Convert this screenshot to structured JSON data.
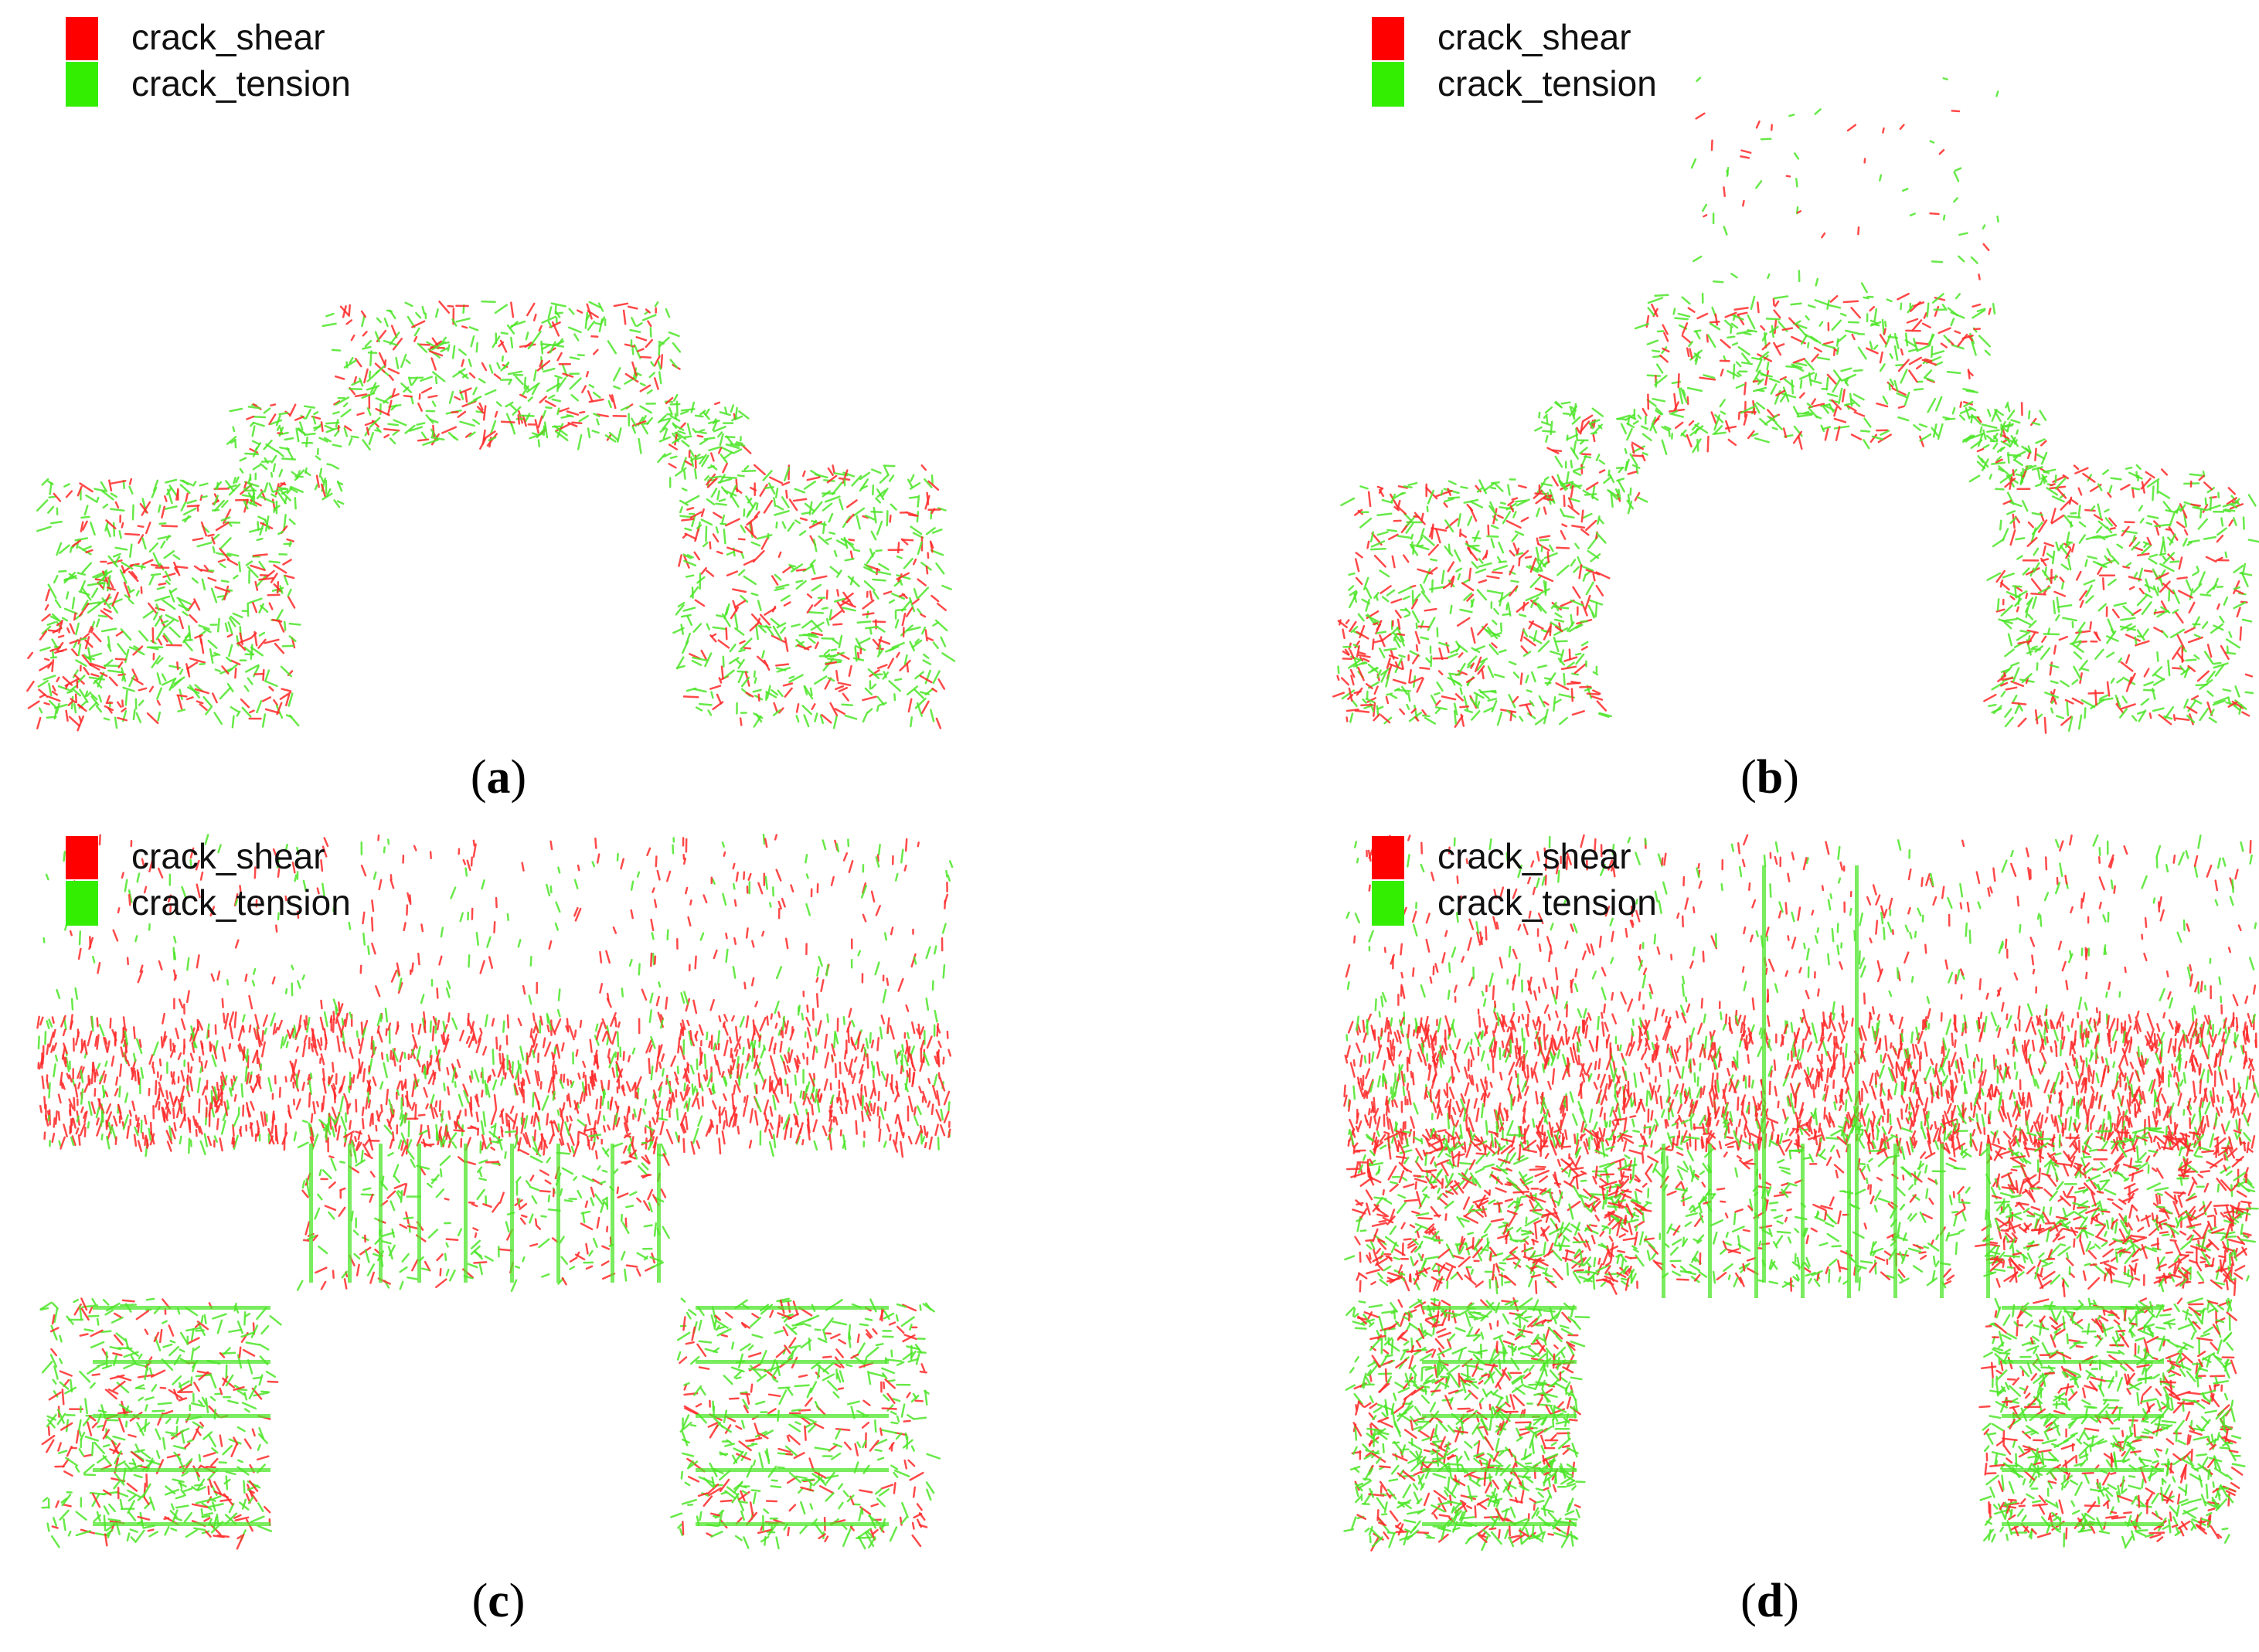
{
  "panels": [
    {
      "legend": [
        "crack_shear",
        "crack_tension"
      ],
      "caption": [
        "(",
        "a",
        ")"
      ]
    },
    {
      "legend": [
        "crack_shear",
        "crack_tension"
      ],
      "caption": [
        "(",
        "b",
        ")"
      ]
    },
    {
      "legend": [
        "crack_shear",
        "crack_tension"
      ],
      "caption": [
        "(",
        "c",
        ")"
      ]
    },
    {
      "legend": [
        "crack_shear",
        "crack_tension"
      ],
      "caption": [
        "(",
        "d",
        ")"
      ]
    }
  ]
}
